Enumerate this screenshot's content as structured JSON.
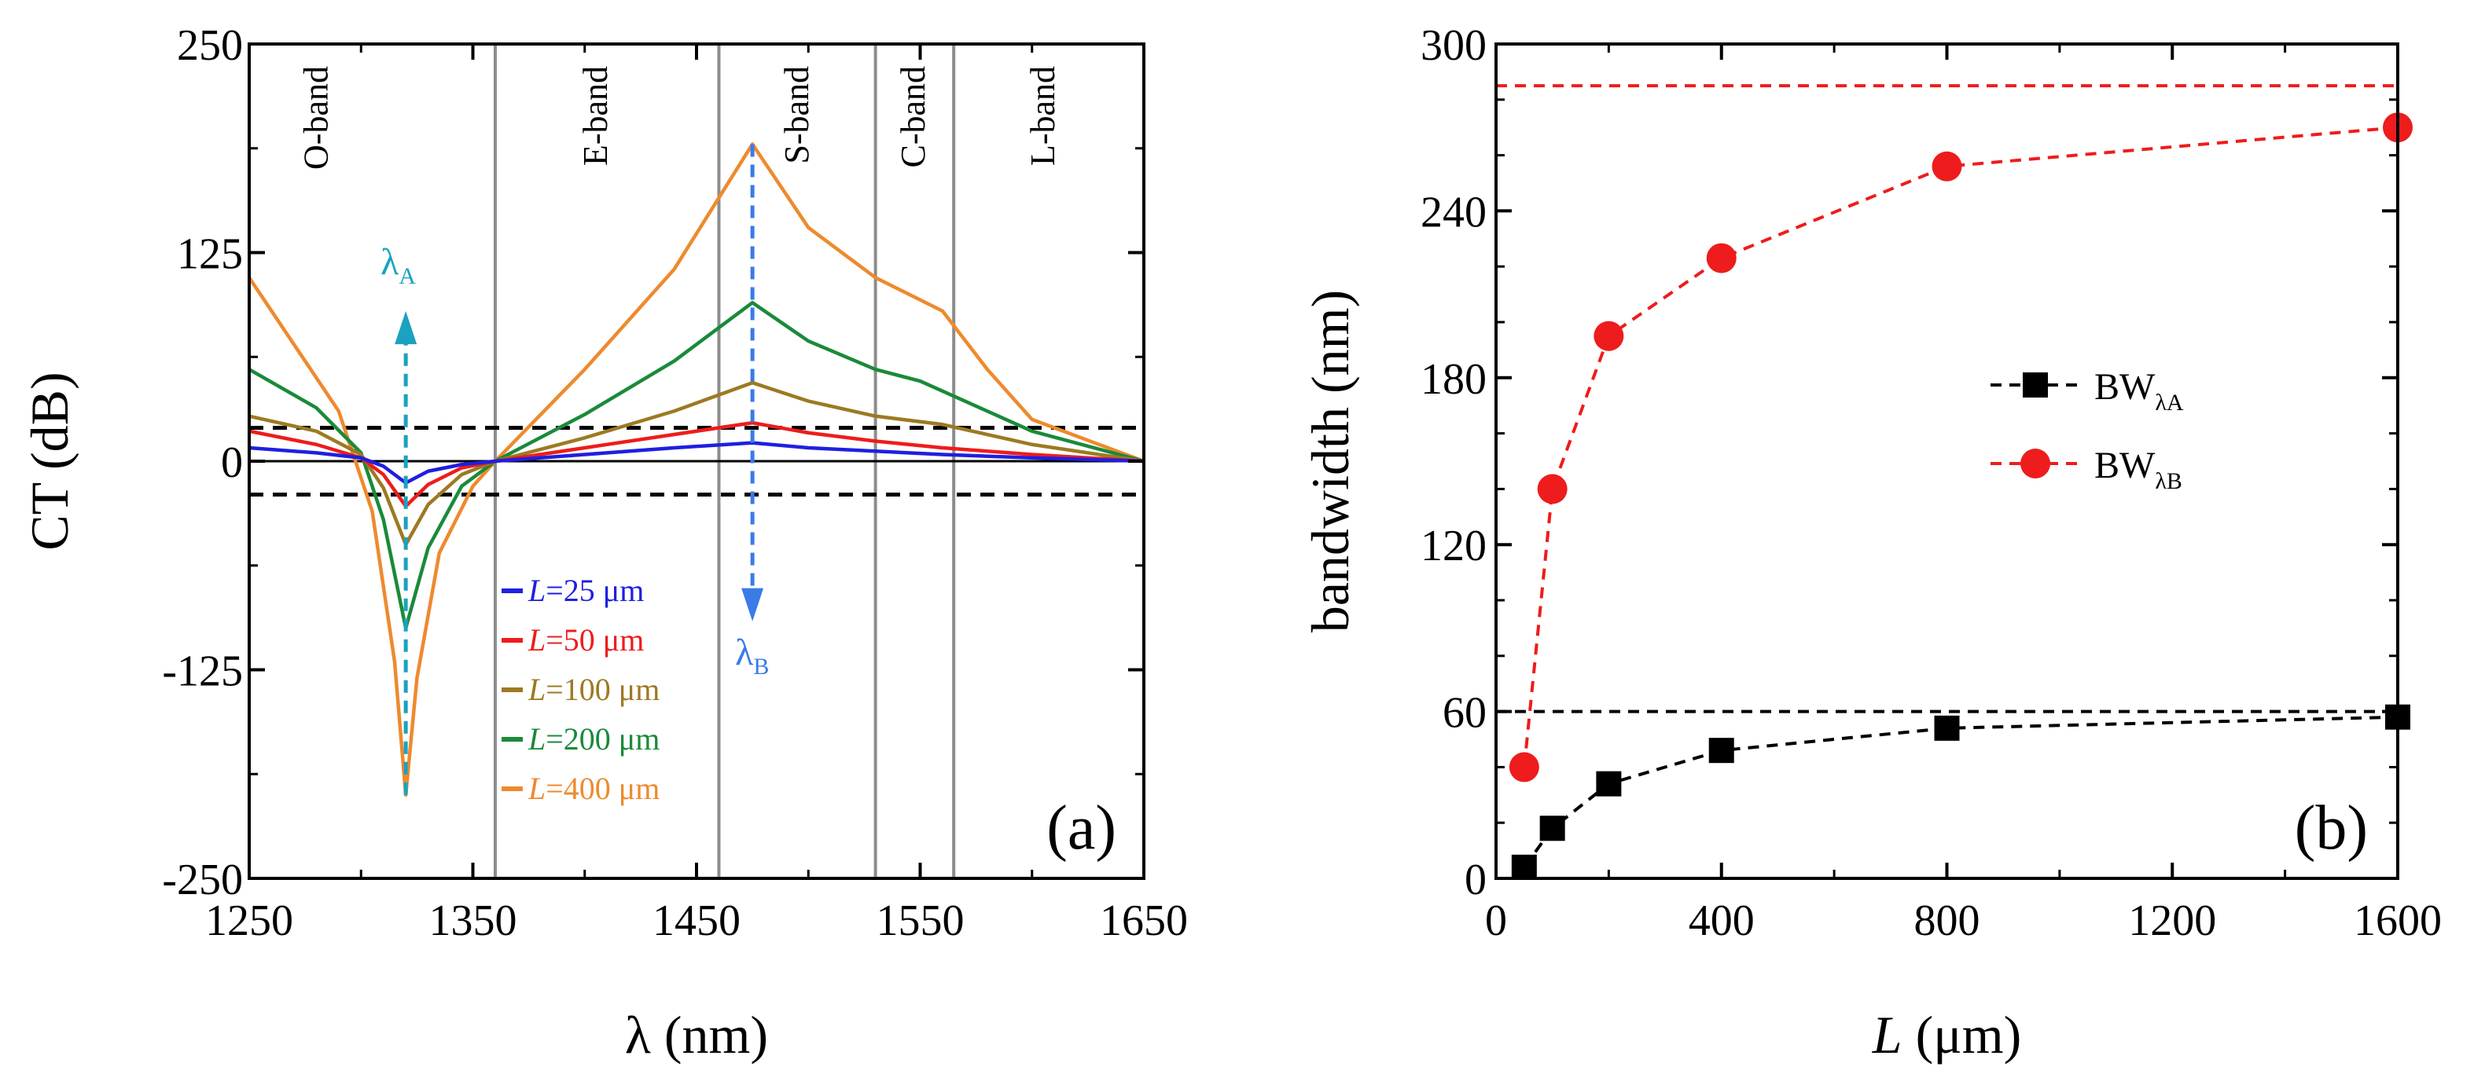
{
  "colors": {
    "blue": "#1f1fe0",
    "red": "#ee1c1c",
    "brown": "#9c7a22",
    "green": "#1a8a3a",
    "orange": "#ee8a2e",
    "cyan": "#1aa2c0",
    "lambdaB": "#3a7be8",
    "gray": "#8c8c8c",
    "black": "#000000",
    "redDash": "#ee1c1c"
  },
  "chart_data": [
    {
      "type": "line",
      "panel_label": "(a)",
      "xlabel": "λ (nm)",
      "ylabel": "CT (dB)",
      "xlim": [
        1250,
        1650
      ],
      "ylim": [
        -250,
        250
      ],
      "xticks": [
        "1250",
        "1350",
        "1450",
        "1550",
        "1650"
      ],
      "yticks": [
        "250",
        "125",
        "0",
        "-125",
        "-250"
      ],
      "band_dividers": [
        1360,
        1460,
        1530,
        1565
      ],
      "bands": [
        {
          "label": "O-band",
          "x": 1280
        },
        {
          "label": "E-band",
          "x": 1405
        },
        {
          "label": "S-band",
          "x": 1495
        },
        {
          "label": "C-band",
          "x": 1547
        },
        {
          "label": "L-band",
          "x": 1605
        }
      ],
      "reference_lines": [
        20,
        -20
      ],
      "annotations": {
        "lambdaA": {
          "letter": "λ",
          "sub": "A",
          "x": 1320
        },
        "lambdaB": {
          "letter": "λ",
          "sub": "B",
          "x": 1475
        }
      },
      "series": [
        {
          "name": "=25 μm",
          "prefix": "L",
          "color_key": "blue",
          "x": [
            1250,
            1280,
            1300,
            1310,
            1320,
            1330,
            1345,
            1360,
            1400,
            1440,
            1475,
            1500,
            1530,
            1560,
            1600,
            1650
          ],
          "y": [
            8,
            5,
            2,
            -3,
            -13,
            -6,
            -2,
            0,
            4,
            8,
            11,
            8,
            6,
            4,
            2,
            0
          ]
        },
        {
          "name": "=50 μm",
          "prefix": "L",
          "color_key": "red",
          "x": [
            1250,
            1280,
            1300,
            1310,
            1320,
            1330,
            1345,
            1360,
            1400,
            1440,
            1475,
            1500,
            1530,
            1560,
            1600,
            1650
          ],
          "y": [
            18,
            10,
            2,
            -8,
            -27,
            -14,
            -4,
            0,
            8,
            16,
            23,
            17,
            12,
            8,
            4,
            0
          ]
        },
        {
          "name": "=100 μm",
          "prefix": "L",
          "color_key": "brown",
          "x": [
            1250,
            1280,
            1300,
            1310,
            1320,
            1330,
            1345,
            1360,
            1400,
            1440,
            1475,
            1500,
            1530,
            1560,
            1600,
            1650
          ],
          "y": [
            27,
            18,
            4,
            -16,
            -50,
            -26,
            -8,
            0,
            14,
            30,
            47,
            36,
            27,
            22,
            10,
            0
          ]
        },
        {
          "name": "=200 μm",
          "prefix": "L",
          "color_key": "green",
          "x": [
            1250,
            1280,
            1300,
            1310,
            1320,
            1330,
            1345,
            1360,
            1400,
            1440,
            1475,
            1500,
            1530,
            1550,
            1570,
            1600,
            1650
          ],
          "y": [
            55,
            32,
            5,
            -35,
            -100,
            -52,
            -15,
            0,
            28,
            60,
            95,
            72,
            55,
            48,
            36,
            18,
            0
          ]
        },
        {
          "name": "=400 μm",
          "prefix": "L",
          "color_key": "orange",
          "x": [
            1250,
            1270,
            1290,
            1305,
            1315,
            1320,
            1325,
            1335,
            1350,
            1360,
            1400,
            1440,
            1475,
            1500,
            1530,
            1560,
            1580,
            1600,
            1650
          ],
          "y": [
            110,
            70,
            30,
            -30,
            -120,
            -200,
            -130,
            -55,
            -15,
            0,
            55,
            115,
            190,
            140,
            110,
            90,
            55,
            25,
            0
          ]
        }
      ]
    },
    {
      "type": "line",
      "panel_label": "(b)",
      "xlabel_italic": "L",
      "xlabel_rest": " (μm)",
      "ylabel": "bandwidth (nm)",
      "xlim": [
        0,
        1600
      ],
      "ylim": [
        0,
        300
      ],
      "xticks": [
        "0",
        "400",
        "800",
        "1200",
        "1600"
      ],
      "yticks": [
        "300",
        "240",
        "180",
        "120",
        "60",
        "0"
      ],
      "reference_lines": [
        {
          "y": 285,
          "color_key": "redDash"
        },
        {
          "y": 60,
          "color_key": "black"
        }
      ],
      "series": [
        {
          "name": "BW",
          "sub": "λA",
          "color_key": "black",
          "marker": "square",
          "x": [
            50,
            100,
            200,
            400,
            800,
            1600
          ],
          "y": [
            4,
            18,
            34,
            46,
            54,
            58
          ]
        },
        {
          "name": "BW",
          "sub": "λB",
          "color_key": "red",
          "marker": "circle",
          "x": [
            50,
            100,
            200,
            400,
            800,
            1600
          ],
          "y": [
            40,
            140,
            195,
            223,
            256,
            270
          ]
        }
      ]
    }
  ]
}
